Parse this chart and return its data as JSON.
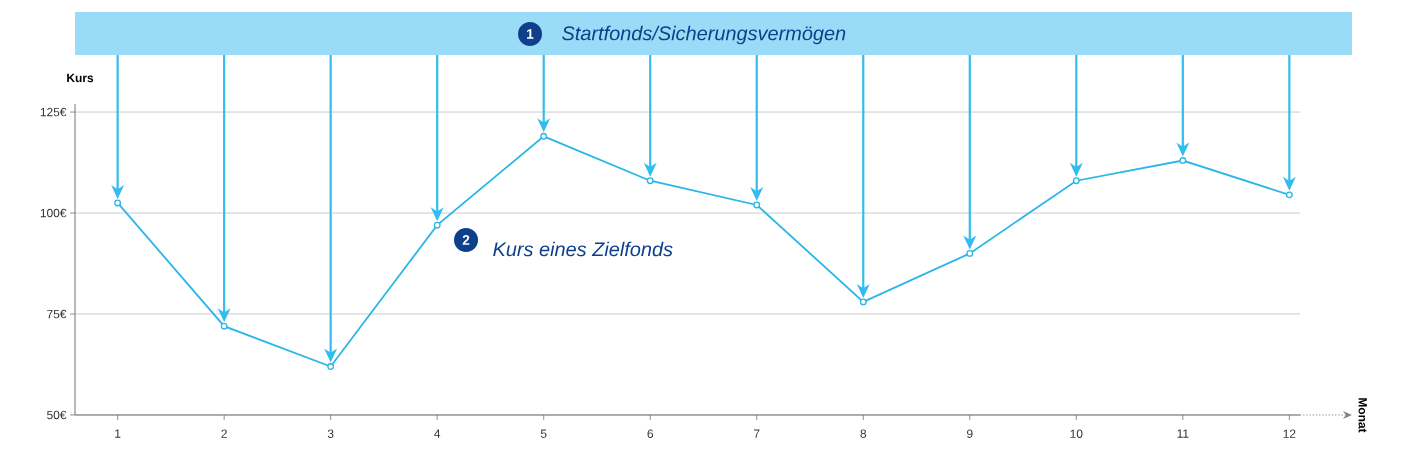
{
  "chart_data": {
    "type": "line",
    "x": [
      1,
      2,
      3,
      4,
      5,
      6,
      7,
      8,
      9,
      10,
      11,
      12
    ],
    "series": [
      {
        "color": "#29b6e8",
        "values": [
          102.5,
          72,
          62,
          97,
          119,
          108,
          102,
          78,
          90,
          108,
          113,
          104.5
        ]
      }
    ],
    "xlim": [
      0.6,
      12.1
    ],
    "ylim": [
      50,
      127
    ],
    "xticks": [
      1,
      2,
      3,
      4,
      5,
      6,
      7,
      8,
      9,
      10,
      11,
      12
    ],
    "yticks": [
      {
        "value": 50,
        "label": "50€"
      },
      {
        "value": 75,
        "label": "75€"
      },
      {
        "value": 100,
        "label": "100€"
      },
      {
        "value": 125,
        "label": "125€"
      }
    ],
    "ylabel": "Kurs",
    "annotations": [
      "1",
      "Startfonds/Sicherungsvermögen",
      "2",
      "Kurs eines Zielfonds",
      "Monat"
    ],
    "grid": "y",
    "marker": "circle",
    "line_style": "solid"
  }
}
